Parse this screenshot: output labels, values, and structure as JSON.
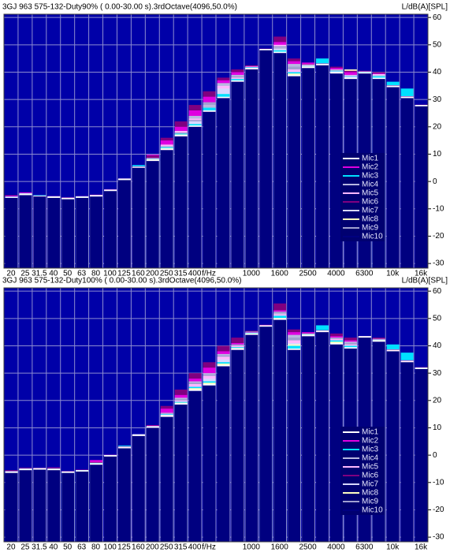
{
  "chart_data": [
    {
      "type": "bar",
      "title": "3GJ 963 575-132-Duty90% ( 0.00-30.00 s).3rdOctave(4096,50.0%)",
      "y_label": "L/dB(A)[SPL]",
      "categories": [
        "20",
        "25",
        "31.5",
        "40",
        "50",
        "63",
        "80",
        "100",
        "125",
        "160",
        "200",
        "250",
        "315",
        "400",
        "f/Hz",
        null,
        null,
        "1000",
        null,
        "1600",
        null,
        "2500",
        null,
        "4000",
        null,
        "6300",
        null,
        "10k",
        null,
        "16k"
      ],
      "ylim": [
        -31.7,
        61.2
      ],
      "yticks": [
        60,
        50,
        40,
        30,
        20,
        10,
        0,
        -10,
        -20,
        -30
      ],
      "grid": true,
      "plot_color": "#0000a8",
      "legend": "right",
      "series": [
        {
          "name": "Mic1",
          "color": "#ffffff",
          "values": [
            -5.7,
            -4.5,
            -5.3,
            -5.5,
            -6,
            -5.5,
            -5,
            -3,
            1,
            5.3,
            8,
            12,
            17,
            20.5,
            26,
            31,
            37,
            41.5,
            48.5,
            47.5,
            39,
            42,
            43,
            40,
            38,
            40,
            38,
            35,
            31,
            28
          ]
        },
        {
          "name": "Mic2",
          "color": "#e000e0",
          "values": [
            -5.2,
            -4,
            -5.3,
            -5.4,
            -5.9,
            -5.4,
            -4.9,
            -2.9,
            1,
            5.4,
            9.8,
            15,
            20,
            26,
            31,
            37,
            40,
            42,
            48.5,
            51,
            44,
            43.5,
            43,
            41.5,
            40,
            40.2,
            39.5,
            35.1,
            31.1,
            28
          ]
        },
        {
          "name": "Mic3",
          "color": "#00e0ff",
          "values": [
            -5.6,
            -4.4,
            -5,
            -5.4,
            -5.9,
            -5.5,
            -4.9,
            -2.9,
            1.1,
            6,
            8.2,
            12.5,
            17.5,
            21,
            27,
            32,
            37.5,
            41.8,
            48.5,
            48,
            40,
            42.2,
            45,
            40.5,
            38.5,
            40.1,
            38.5,
            36.5,
            34,
            28
          ]
        },
        {
          "name": "Mic4",
          "color": "#b8b8e0",
          "values": [
            -5.6,
            -4.4,
            -5.2,
            -5.5,
            -6,
            -5.5,
            -5,
            -3,
            1,
            5.4,
            8.5,
            13,
            18,
            24,
            28,
            36,
            39,
            42,
            48.5,
            49,
            43,
            42.5,
            43,
            41,
            39,
            40.2,
            39,
            35,
            31,
            28
          ]
        },
        {
          "name": "Mic5",
          "color": "#ffb8ff",
          "values": [
            -5.5,
            -4.3,
            -5.2,
            -5.4,
            -5.9,
            -5.4,
            -4.9,
            -2.9,
            1.1,
            5.4,
            8.6,
            13.5,
            18.5,
            23,
            28,
            35,
            38,
            42.2,
            48.5,
            50,
            41,
            42.8,
            43.1,
            40.8,
            38.8,
            40.3,
            39.3,
            35,
            31,
            28
          ]
        },
        {
          "name": "Mic6",
          "color": "#800080",
          "values": [
            -5,
            -4,
            -5.2,
            -5.3,
            -5.8,
            -5.4,
            -4.8,
            -2.8,
            1.2,
            5.5,
            9.5,
            16,
            22,
            28,
            33,
            38,
            41,
            42.5,
            48.6,
            53,
            45,
            43,
            43.2,
            42,
            40.5,
            40.5,
            40,
            35.2,
            31.2,
            28.1
          ]
        },
        {
          "name": "Mic7",
          "color": "#d8d8ff",
          "values": [
            -5.6,
            -4.5,
            -5.3,
            -5.5,
            -6,
            -5.5,
            -5,
            -3,
            1,
            5.3,
            8.2,
            12.5,
            17.5,
            22,
            28,
            34,
            38,
            41.8,
            48.5,
            48.5,
            40,
            42.3,
            43,
            40.3,
            38.3,
            40.1,
            38.8,
            35,
            31,
            28
          ]
        },
        {
          "name": "Mic8",
          "color": "#ffffc0",
          "values": [
            -5.6,
            -4.4,
            -5.3,
            -5.5,
            -6,
            -5.5,
            -5,
            -3,
            1,
            5.3,
            8.1,
            12.2,
            17.2,
            21,
            27,
            32,
            37.5,
            41.6,
            48.5,
            48,
            39.5,
            42.1,
            43,
            40.5,
            41,
            40.2,
            38.5,
            35,
            31,
            28
          ]
        },
        {
          "name": "Mic9",
          "color": "#a0a0d0",
          "values": [
            -5.6,
            -4.4,
            -5.3,
            -5.5,
            -6,
            -5.5,
            -5,
            -3,
            1,
            5.3,
            8.3,
            13,
            17.8,
            22.5,
            29,
            35,
            38.5,
            42,
            48.5,
            49.5,
            42,
            42.5,
            43,
            40.7,
            38.5,
            40.2,
            38.6,
            35,
            31,
            28
          ]
        },
        {
          "name": "Mic10",
          "color": "#000080",
          "values": [
            -6,
            -5,
            -5.5,
            -6,
            -6.5,
            -6,
            -5.5,
            -3.5,
            0.5,
            5,
            7.5,
            11.5,
            16.5,
            20,
            25.5,
            30.5,
            36.5,
            41,
            48,
            47,
            38.5,
            41.5,
            42.5,
            39.5,
            37.5,
            39.5,
            37.5,
            34.5,
            30.5,
            27.5
          ]
        }
      ]
    },
    {
      "type": "bar",
      "title": "3GJ 963 575-132-Duty100% ( 0.00-30.00 s).3rdOctave(4096,50.0%)",
      "y_label": "L/dB(A)[SPL]",
      "categories": [
        "20",
        "25",
        "31.5",
        "40",
        "50",
        "63",
        "80",
        "100",
        "125",
        "160",
        "200",
        "250",
        "315",
        "400",
        "f/Hz",
        null,
        null,
        "1000",
        null,
        "1600",
        null,
        "2500",
        null,
        "4000",
        null,
        "6300",
        null,
        "10k",
        null,
        "16k"
      ],
      "ylim": [
        -31.7,
        61.2
      ],
      "yticks": [
        60,
        50,
        40,
        30,
        20,
        10,
        0,
        -10,
        -20,
        -30
      ],
      "grid": true,
      "plot_color": "#0000a8",
      "legend": "right",
      "series": [
        {
          "name": "Mic1",
          "color": "#ffffff",
          "values": [
            -6,
            -5,
            -4.8,
            -5,
            -6,
            -5.5,
            -3,
            0,
            3,
            7.5,
            10.5,
            14.5,
            19,
            24,
            26,
            33,
            39,
            44.5,
            47.5,
            50,
            39,
            44,
            45.5,
            41,
            39.5,
            43.5,
            42,
            38.5,
            34.5,
            32
          ]
        },
        {
          "name": "Mic2",
          "color": "#e000e0",
          "values": [
            -5.8,
            -4.8,
            -4.7,
            -4.5,
            -5.9,
            -5.4,
            -1.8,
            0.1,
            3.1,
            7.6,
            10.8,
            17,
            22,
            28,
            32,
            38,
            41,
            45,
            47.6,
            53,
            45,
            45,
            45.6,
            43.5,
            42,
            43.5,
            42.5,
            38.6,
            34.6,
            32.1
          ]
        },
        {
          "name": "Mic3",
          "color": "#00e0ff",
          "values": [
            -5.9,
            -4.9,
            -4.7,
            -4.9,
            -6,
            -5.5,
            -2.9,
            0.1,
            3.5,
            7.8,
            10.6,
            15,
            19.5,
            25,
            27,
            34,
            39.5,
            44.8,
            47.5,
            51,
            40,
            44.2,
            47.5,
            42,
            40,
            43.5,
            42.2,
            40.5,
            37.5,
            32
          ]
        },
        {
          "name": "Mic4",
          "color": "#b8b8e0",
          "values": [
            -5.9,
            -4.9,
            -4.8,
            -5,
            -6,
            -5.5,
            -2.8,
            0,
            3,
            7.6,
            10.6,
            15.5,
            21,
            27,
            30,
            37,
            41,
            45.2,
            47.5,
            52,
            44,
            44.5,
            45.5,
            43,
            41.5,
            43.5,
            42.6,
            38.5,
            34.5,
            32
          ]
        },
        {
          "name": "Mic5",
          "color": "#ffb8ff",
          "values": [
            -5.9,
            -4.9,
            -4.8,
            -5,
            -6,
            -5.5,
            -2.8,
            0,
            3,
            7.5,
            10.6,
            15,
            20,
            26,
            29,
            36,
            40,
            45,
            47.5,
            51.5,
            42,
            44.3,
            45.5,
            42.5,
            40.5,
            43.5,
            42.3,
            38.5,
            34.5,
            32
          ]
        },
        {
          "name": "Mic6",
          "color": "#800080",
          "values": [
            -5.5,
            -4.6,
            -4.6,
            -4.6,
            -5.8,
            -5.3,
            -2.5,
            0.2,
            3.2,
            7.7,
            11,
            18,
            24,
            30,
            34,
            40,
            43,
            45.5,
            47.7,
            55.5,
            46,
            44.6,
            45.7,
            44.5,
            43,
            43.6,
            43,
            38.7,
            34.7,
            32.2
          ]
        },
        {
          "name": "Mic7",
          "color": "#d8d8ff",
          "values": [
            -6,
            -5,
            -4.8,
            -5,
            -6,
            -5.5,
            -2.9,
            0,
            3,
            7.5,
            10.5,
            14.8,
            19.5,
            25,
            28,
            35,
            40,
            44.8,
            47.5,
            51,
            41,
            44.2,
            45.5,
            42,
            40.2,
            43.5,
            42.2,
            38.5,
            34.5,
            32
          ]
        },
        {
          "name": "Mic8",
          "color": "#ffffc0",
          "values": [
            -6,
            -5,
            -4.8,
            -5,
            -6,
            -5.5,
            -2.9,
            0,
            3,
            7.5,
            10.5,
            14.6,
            19.2,
            24.5,
            26.5,
            33.5,
            39.2,
            44.6,
            47.5,
            50.2,
            40.5,
            44.1,
            45.5,
            41.5,
            40,
            43.5,
            42.1,
            38.5,
            34.5,
            32
          ]
        },
        {
          "name": "Mic9",
          "color": "#a0a0d0",
          "values": [
            -6,
            -5,
            -4.8,
            -5,
            -6,
            -5.5,
            -2.9,
            0,
            3,
            7.5,
            10.5,
            15.2,
            20.5,
            26.5,
            29.5,
            36.5,
            40.5,
            45,
            47.5,
            52.5,
            43,
            44.4,
            45.5,
            42.8,
            41,
            43.5,
            42.4,
            38.5,
            34.5,
            32
          ]
        },
        {
          "name": "Mic10",
          "color": "#000080",
          "values": [
            -6.5,
            -5.5,
            -5.3,
            -5.5,
            -6.5,
            -6,
            -3.5,
            -0.5,
            2.5,
            7,
            10,
            14,
            18.5,
            23.5,
            25.5,
            32.5,
            38.5,
            44,
            47,
            49.5,
            38.5,
            43.5,
            45,
            40.5,
            39,
            43,
            41.5,
            38,
            34,
            31.5
          ]
        }
      ]
    }
  ]
}
